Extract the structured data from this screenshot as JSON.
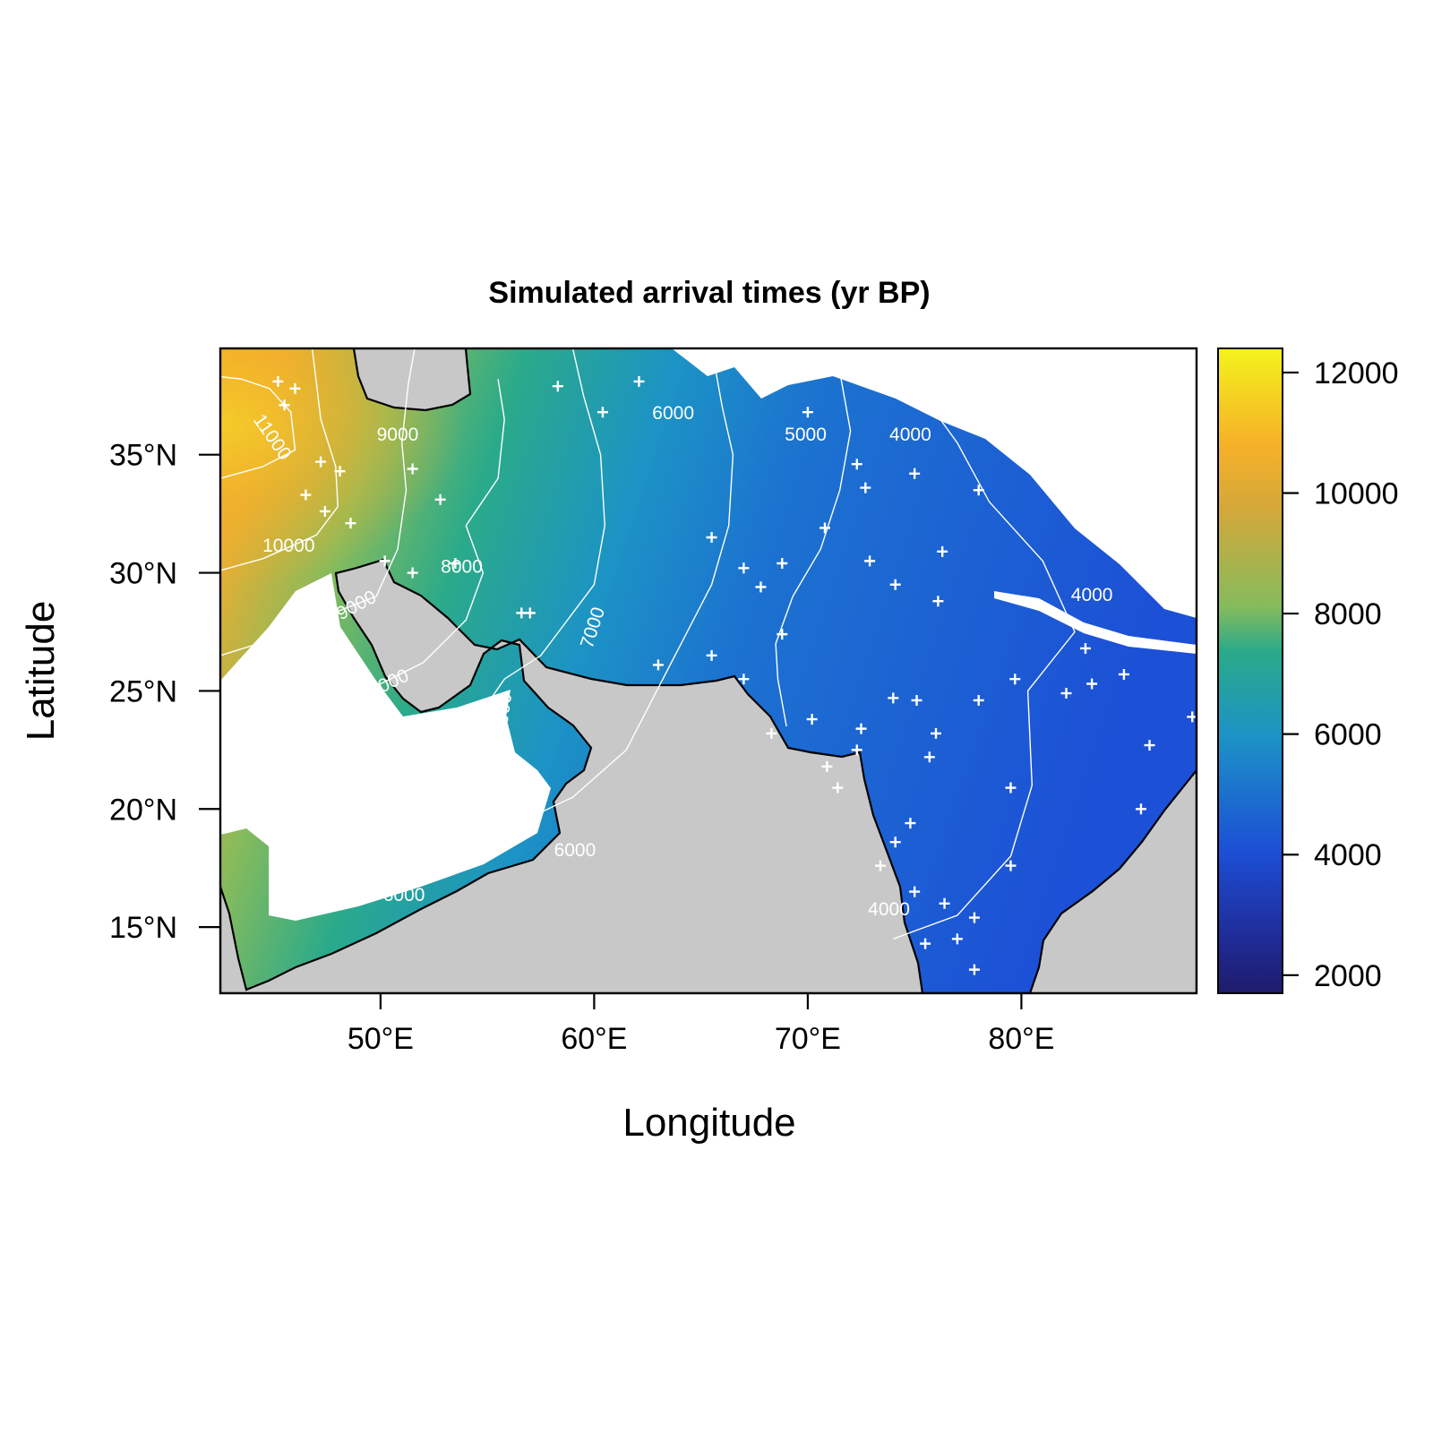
{
  "chart_data": {
    "type": "heatmap",
    "title": "Simulated arrival times (yr BP)",
    "xlabel": "Longitude",
    "ylabel": "Latitude",
    "xlim": [
      42.5,
      88.2
    ],
    "ylim": [
      12.2,
      39.5
    ],
    "x_ticks": [
      {
        "value": 50,
        "label": "50°E"
      },
      {
        "value": 60,
        "label": "60°E"
      },
      {
        "value": 70,
        "label": "70°E"
      },
      {
        "value": 80,
        "label": "80°E"
      }
    ],
    "y_ticks": [
      {
        "value": 15,
        "label": "15°N"
      },
      {
        "value": 20,
        "label": "20°N"
      },
      {
        "value": 25,
        "label": "25°N"
      },
      {
        "value": 30,
        "label": "30°N"
      },
      {
        "value": 35,
        "label": "35°N"
      }
    ],
    "colorbar": {
      "range": [
        1700,
        12400
      ],
      "ticks": [
        {
          "value": 2000,
          "label": "2000"
        },
        {
          "value": 4000,
          "label": "4000"
        },
        {
          "value": 6000,
          "label": "6000"
        },
        {
          "value": 8000,
          "label": "8000"
        },
        {
          "value": 10000,
          "label": "10000"
        },
        {
          "value": 12000,
          "label": "12000"
        }
      ],
      "colors": [
        "#1f1b6b",
        "#1c4fd6",
        "#1c93c5",
        "#2aaa8a",
        "#86bb5c",
        "#d3a83a",
        "#f6b128",
        "#f4f31c"
      ]
    },
    "land_color": "#c8c8c8",
    "contour_color": "#ffffff",
    "site_color": "#ffffff",
    "contour_labels": [
      {
        "label": "11000",
        "lon": 44.7,
        "lat": 35.6,
        "angle": 55
      },
      {
        "label": "10000",
        "lon": 45.7,
        "lat": 30.9,
        "angle": 0
      },
      {
        "label": "9000",
        "lon": 50.8,
        "lat": 35.6,
        "angle": 0
      },
      {
        "label": "9000",
        "lon": 49.0,
        "lat": 28.4,
        "angle": -28
      },
      {
        "label": "8000",
        "lon": 53.8,
        "lat": 30.0,
        "angle": 0
      },
      {
        "label": "8000",
        "lon": 50.5,
        "lat": 25.1,
        "angle": -25
      },
      {
        "label": "7000",
        "lon": 60.2,
        "lat": 27.6,
        "angle": -72
      },
      {
        "label": "7000",
        "lon": 56.0,
        "lat": 24.0,
        "angle": -82
      },
      {
        "label": "6000",
        "lon": 63.7,
        "lat": 36.5,
        "angle": 0
      },
      {
        "label": "6000",
        "lon": 59.1,
        "lat": 18.0,
        "angle": 0
      },
      {
        "label": "6000",
        "lon": 51.1,
        "lat": 16.1,
        "angle": 0
      },
      {
        "label": "5000",
        "lon": 69.9,
        "lat": 35.6,
        "angle": 0
      },
      {
        "label": "4000",
        "lon": 74.8,
        "lat": 35.6,
        "angle": 0
      },
      {
        "label": "4000",
        "lon": 83.3,
        "lat": 28.8,
        "angle": 0
      },
      {
        "label": "4000",
        "lon": 73.8,
        "lat": 15.5,
        "angle": 0
      }
    ],
    "contour_lines": [
      {
        "level": 11000,
        "points": [
          [
            42.5,
            34.0
          ],
          [
            44.5,
            34.5
          ],
          [
            46.0,
            35.2
          ],
          [
            45.8,
            36.8
          ],
          [
            44.8,
            37.8
          ],
          [
            43.5,
            38.2
          ],
          [
            42.5,
            38.3
          ]
        ]
      },
      {
        "level": 10000,
        "points": [
          [
            42.5,
            30.1
          ],
          [
            44.5,
            30.6
          ],
          [
            47.0,
            31.6
          ],
          [
            48.0,
            32.8
          ],
          [
            47.9,
            34.5
          ],
          [
            47.2,
            36.5
          ],
          [
            46.8,
            39.5
          ]
        ]
      },
      {
        "level": 9000,
        "points": [
          [
            42.5,
            26.5
          ],
          [
            45.0,
            27.2
          ],
          [
            47.5,
            28.2
          ],
          [
            49.8,
            29.0
          ],
          [
            50.8,
            31.0
          ],
          [
            51.2,
            33.5
          ],
          [
            51.0,
            35.5
          ],
          [
            51.3,
            38.0
          ],
          [
            51.6,
            39.5
          ]
        ]
      },
      {
        "level": 8000,
        "points": [
          [
            42.5,
            22.6
          ],
          [
            45.0,
            23.4
          ],
          [
            47.5,
            24.2
          ],
          [
            50.0,
            25.3
          ],
          [
            52.0,
            26.2
          ],
          [
            54.0,
            28.0
          ],
          [
            54.8,
            30.0
          ],
          [
            54.0,
            32.0
          ],
          [
            55.5,
            34.0
          ],
          [
            55.8,
            36.5
          ],
          [
            55.5,
            38.2
          ]
        ]
      },
      {
        "level": 7000,
        "points": [
          [
            44.6,
            19.1
          ],
          [
            48.0,
            20.0
          ],
          [
            51.5,
            21.5
          ],
          [
            54.5,
            23.8
          ],
          [
            55.8,
            25.5
          ],
          [
            57.5,
            26.5
          ],
          [
            60.0,
            29.5
          ],
          [
            60.5,
            32.0
          ],
          [
            60.3,
            35.0
          ],
          [
            59.5,
            37.5
          ],
          [
            59.0,
            39.5
          ]
        ]
      },
      {
        "level": 6000,
        "points": [
          [
            45.0,
            16.2
          ],
          [
            48.5,
            17.0
          ],
          [
            52.0,
            18.0
          ],
          [
            55.5,
            19.0
          ],
          [
            59.0,
            20.5
          ],
          [
            61.5,
            22.5
          ],
          [
            63.5,
            26.0
          ],
          [
            65.5,
            29.5
          ],
          [
            66.3,
            32.0
          ],
          [
            66.5,
            35.0
          ],
          [
            66.0,
            37.0
          ],
          [
            65.5,
            39.5
          ]
        ]
      },
      {
        "level": 5000,
        "points": [
          [
            69.0,
            23.5
          ],
          [
            68.6,
            25.5
          ],
          [
            68.5,
            27.0
          ],
          [
            69.3,
            29.0
          ],
          [
            70.6,
            31.0
          ],
          [
            71.5,
            33.5
          ],
          [
            72.0,
            36.0
          ],
          [
            71.5,
            38.5
          ]
        ]
      },
      {
        "level": 4000,
        "points": [
          [
            74.0,
            14.5
          ],
          [
            77.0,
            15.5
          ],
          [
            79.5,
            18.0
          ],
          [
            80.5,
            21.0
          ],
          [
            80.3,
            25.0
          ],
          [
            82.5,
            27.5
          ],
          [
            81.0,
            30.5
          ],
          [
            78.5,
            33.0
          ],
          [
            77.0,
            35.5
          ],
          [
            76.2,
            36.5
          ]
        ]
      }
    ],
    "sites": [
      [
        45.2,
        38.1
      ],
      [
        45.5,
        37.1
      ],
      [
        46.0,
        37.8
      ],
      [
        47.2,
        34.7
      ],
      [
        48.1,
        34.3
      ],
      [
        46.5,
        33.3
      ],
      [
        47.4,
        32.6
      ],
      [
        48.6,
        32.1
      ],
      [
        50.2,
        30.5
      ],
      [
        51.5,
        30.0
      ],
      [
        53.5,
        30.4
      ],
      [
        51.5,
        34.4
      ],
      [
        52.8,
        33.1
      ],
      [
        58.3,
        37.9
      ],
      [
        60.4,
        36.8
      ],
      [
        62.1,
        38.1
      ],
      [
        56.6,
        28.3
      ],
      [
        57.0,
        28.3
      ],
      [
        65.5,
        31.5
      ],
      [
        67.0,
        30.2
      ],
      [
        67.8,
        29.4
      ],
      [
        68.8,
        30.4
      ],
      [
        68.8,
        27.4
      ],
      [
        63.0,
        26.1
      ],
      [
        65.5,
        26.5
      ],
      [
        67.0,
        25.5
      ],
      [
        68.3,
        23.2
      ],
      [
        70.2,
        23.8
      ],
      [
        70.9,
        21.8
      ],
      [
        71.4,
        20.9
      ],
      [
        72.3,
        22.5
      ],
      [
        72.5,
        23.4
      ],
      [
        70.0,
        36.8
      ],
      [
        72.3,
        34.6
      ],
      [
        72.7,
        33.6
      ],
      [
        75.0,
        34.2
      ],
      [
        70.8,
        31.9
      ],
      [
        72.9,
        30.5
      ],
      [
        74.1,
        29.5
      ],
      [
        76.3,
        30.9
      ],
      [
        76.1,
        28.8
      ],
      [
        78.0,
        33.5
      ],
      [
        74.0,
        24.7
      ],
      [
        75.1,
        24.6
      ],
      [
        76.0,
        23.2
      ],
      [
        75.7,
        22.2
      ],
      [
        78.0,
        24.6
      ],
      [
        79.7,
        25.5
      ],
      [
        82.1,
        24.9
      ],
      [
        83.3,
        25.3
      ],
      [
        84.8,
        25.7
      ],
      [
        83.0,
        26.8
      ],
      [
        86.0,
        22.7
      ],
      [
        88.0,
        23.9
      ],
      [
        79.5,
        20.9
      ],
      [
        85.6,
        20.0
      ],
      [
        74.8,
        19.4
      ],
      [
        74.1,
        18.6
      ],
      [
        73.4,
        17.6
      ],
      [
        75.0,
        16.5
      ],
      [
        76.4,
        16.0
      ],
      [
        77.8,
        15.4
      ],
      [
        75.5,
        14.3
      ],
      [
        77.0,
        14.5
      ],
      [
        77.8,
        13.2
      ],
      [
        79.5,
        17.6
      ]
    ]
  }
}
